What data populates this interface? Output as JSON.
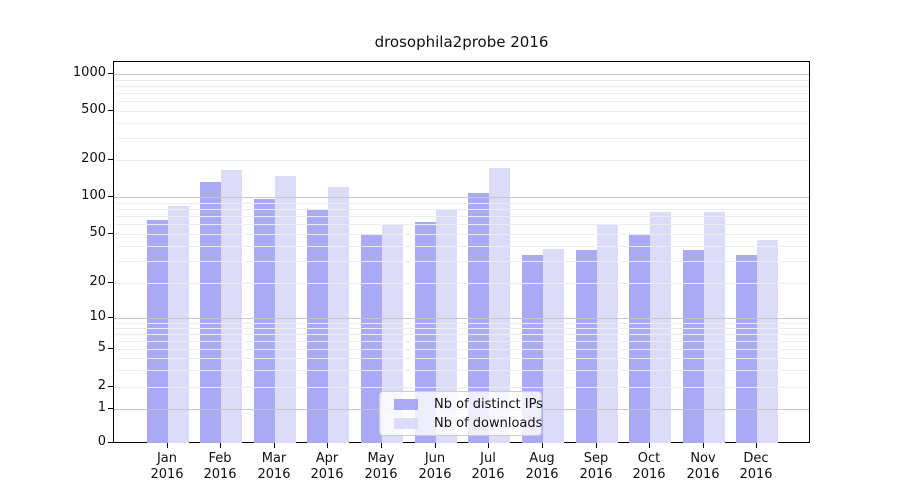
{
  "chart_data": {
    "type": "bar",
    "title": "drosophila2probe 2016",
    "scale": "symlog",
    "categories": [
      "Jan",
      "Feb",
      "Mar",
      "Apr",
      "May",
      "Jun",
      "Jul",
      "Aug",
      "Sep",
      "Oct",
      "Nov",
      "Dec"
    ],
    "year_label": "2016",
    "series": [
      {
        "name": "Nb of distinct IPs",
        "color": "#a9a9f4",
        "values": [
          65,
          132,
          96,
          78,
          50,
          63,
          108,
          34,
          37,
          50,
          37,
          34
        ]
      },
      {
        "name": "Nb of downloads",
        "color": "#dcdcf9",
        "values": [
          84,
          166,
          148,
          120,
          59,
          79,
          172,
          38,
          60,
          75,
          76,
          45
        ]
      }
    ],
    "yticks": [
      0,
      1,
      2,
      5,
      10,
      20,
      50,
      100,
      200,
      500,
      1000
    ],
    "ylim": [
      0,
      1270
    ],
    "xlabel": "",
    "ylabel": "",
    "grid": true,
    "legend_position": "bottom-center",
    "colors": {
      "major_grid": "#c6c6c6",
      "minor_grid": "#ededed",
      "spine": "#000000",
      "text": "#111111"
    }
  }
}
